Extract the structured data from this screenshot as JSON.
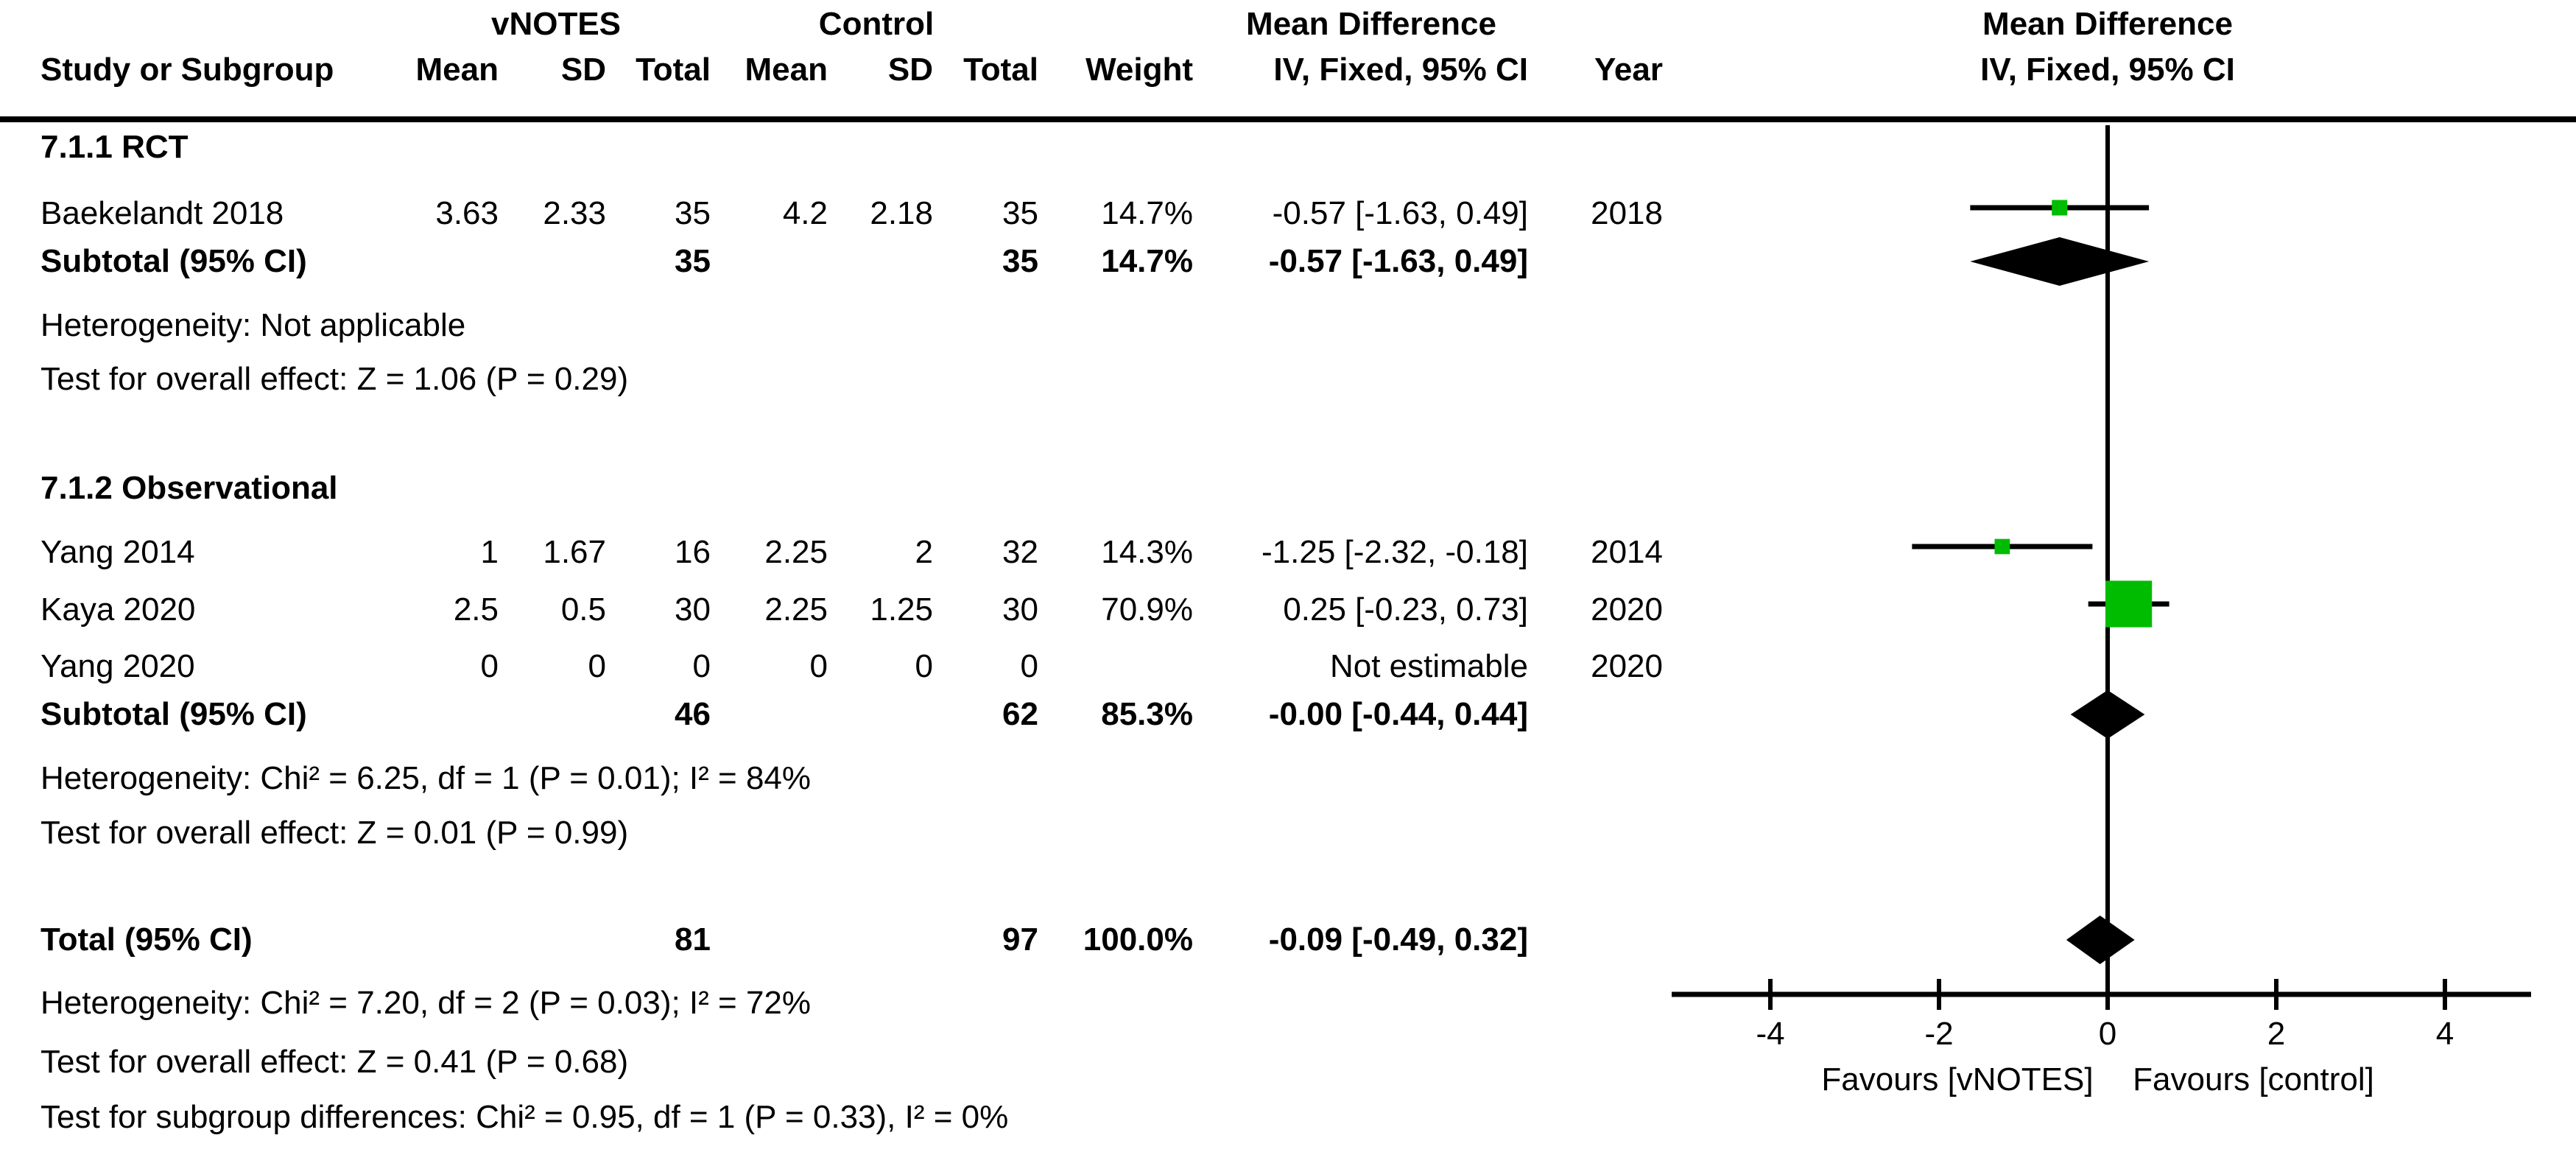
{
  "header": {
    "group_vnotes": "vNOTES",
    "group_control": "Control",
    "effect_title": "Mean Difference",
    "col_study": "Study or Subgroup",
    "col_mean": "Mean",
    "col_sd": "SD",
    "col_total": "Total",
    "col_weight": "Weight",
    "col_effect": "IV, Fixed, 95% CI",
    "col_year": "Year"
  },
  "colors": {
    "marker_green": "#00bc00",
    "ink": "#000000"
  },
  "chart_data": {
    "type": "scatter",
    "subtype": "forest_plot",
    "title": "Mean Difference",
    "effect_model": "IV, Fixed, 95% CI",
    "xlim": [
      -5.1,
      5.0
    ],
    "x_tick_values": [
      -4,
      -2,
      0,
      2,
      4
    ],
    "x_ticks": [
      "-4",
      "-2",
      "0",
      "2",
      "4"
    ],
    "favours_left": "Favours [vNOTES]",
    "favours_right": "Favours [control]",
    "groups": [
      {
        "label": "7.1.1 RCT",
        "studies": [
          {
            "study": "Baekelandt 2018",
            "mean1": "3.63",
            "sd1": "2.33",
            "total1": "35",
            "mean2": "4.2",
            "sd2": "2.18",
            "total2": "35",
            "weight": "14.7%",
            "effect": "-0.57 [-1.63, 0.49]",
            "year": "2018",
            "md": -0.57,
            "ci_low": -1.63,
            "ci_high": 0.49,
            "weight_pct": 14.7
          }
        ],
        "subtotal": {
          "label": "Subtotal (95% CI)",
          "total1": "35",
          "total2": "35",
          "weight": "14.7%",
          "effect": "-0.57 [-1.63, 0.49]",
          "md": -0.57,
          "ci_low": -1.63,
          "ci_high": 0.49
        },
        "notes": [
          "Heterogeneity: Not applicable",
          "Test for overall effect: Z = 1.06 (P = 0.29)"
        ]
      },
      {
        "label": "7.1.2 Observational",
        "studies": [
          {
            "study": "Yang 2014",
            "mean1": "1",
            "sd1": "1.67",
            "total1": "16",
            "mean2": "2.25",
            "sd2": "2",
            "total2": "32",
            "weight": "14.3%",
            "effect": "-1.25 [-2.32, -0.18]",
            "year": "2014",
            "md": -1.25,
            "ci_low": -2.32,
            "ci_high": -0.18,
            "weight_pct": 14.3
          },
          {
            "study": "Kaya 2020",
            "mean1": "2.5",
            "sd1": "0.5",
            "total1": "30",
            "mean2": "2.25",
            "sd2": "1.25",
            "total2": "30",
            "weight": "70.9%",
            "effect": "0.25 [-0.23, 0.73]",
            "year": "2020",
            "md": 0.25,
            "ci_low": -0.23,
            "ci_high": 0.73,
            "weight_pct": 70.9
          },
          {
            "study": "Yang 2020",
            "mean1": "0",
            "sd1": "0",
            "total1": "0",
            "mean2": "0",
            "sd2": "0",
            "total2": "0",
            "weight": "",
            "effect": "Not estimable",
            "year": "2020",
            "md": null,
            "ci_low": null,
            "ci_high": null,
            "weight_pct": null
          }
        ],
        "subtotal": {
          "label": "Subtotal (95% CI)",
          "total1": "46",
          "total2": "62",
          "weight": "85.3%",
          "effect": "-0.00 [-0.44, 0.44]",
          "md": 0,
          "ci_low": -0.44,
          "ci_high": 0.44
        },
        "notes": [
          "Heterogeneity: Chi² = 6.25, df = 1 (P = 0.01); I² = 84%",
          "Test for overall effect: Z = 0.01 (P = 0.99)"
        ]
      }
    ],
    "total": {
      "label": "Total (95% CI)",
      "total1": "81",
      "total2": "97",
      "weight": "100.0%",
      "effect": "-0.09 [-0.49, 0.32]",
      "md": -0.09,
      "ci_low": -0.49,
      "ci_high": 0.32
    },
    "total_notes": [
      "Heterogeneity: Chi² = 7.20, df = 2 (P = 0.03); I² = 72%",
      "Test for overall effect: Z = 0.41 (P = 0.68)",
      "Test for subgroup differences: Chi² = 0.95, df = 1 (P = 0.33), I² = 0%"
    ]
  }
}
